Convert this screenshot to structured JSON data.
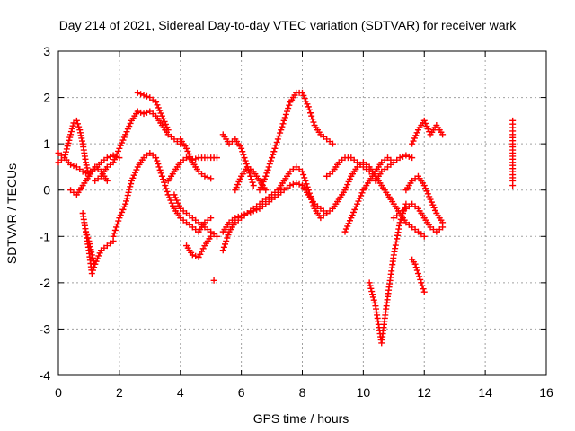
{
  "chart_data": {
    "type": "scatter",
    "title": "Day 214 of 2021, Sidereal Day-to-day VTEC variation (SDTVAR) for receiver wark",
    "xlabel": "GPS time / hours",
    "ylabel": "SDTVAR / TECUs",
    "xlim": [
      0,
      16
    ],
    "ylim": [
      -4,
      3
    ],
    "xticks": [
      0,
      2,
      4,
      6,
      8,
      10,
      12,
      14,
      16
    ],
    "yticks": [
      -4,
      -3,
      -2,
      -1,
      0,
      1,
      2,
      3
    ],
    "grid": true,
    "legend": "none",
    "marker": "+",
    "color": "#ff0000",
    "series": [
      {
        "x": [
          0,
          0.2,
          0.4,
          0.5,
          0.6,
          0.7,
          0.8,
          0.9,
          1.0,
          1.05
        ],
        "y": [
          0.6,
          0.7,
          1.2,
          1.45,
          1.5,
          1.3,
          1.0,
          0.6,
          0.3,
          0.4
        ]
      },
      {
        "x": [
          0,
          0.2,
          0.4,
          0.6,
          0.8,
          1.0,
          1.2,
          1.4,
          1.6,
          1.8,
          2.0
        ],
        "y": [
          0.8,
          0.7,
          0.55,
          0.5,
          0.4,
          0.35,
          0.45,
          0.6,
          0.7,
          0.75,
          0.7
        ]
      },
      {
        "x": [
          0.4,
          0.6,
          0.8,
          1.0,
          1.2,
          1.4,
          1.6
        ],
        "y": [
          0.0,
          -0.1,
          0.1,
          0.3,
          0.5,
          0.4,
          0.2
        ]
      },
      {
        "x": [
          0.8,
          0.9,
          1.0,
          1.1,
          1.2,
          1.4,
          1.6,
          1.8
        ],
        "y": [
          -0.5,
          -0.9,
          -1.3,
          -1.8,
          -1.6,
          -1.3,
          -1.2,
          -1.1
        ]
      },
      {
        "x": [
          0.9,
          1.0,
          1.1,
          1.2
        ],
        "y": [
          -0.9,
          -1.1,
          -1.4,
          -1.6
        ]
      },
      {
        "x": [
          1.2,
          1.4,
          1.6,
          1.8,
          2.0,
          2.2,
          2.4,
          2.6,
          2.8,
          3.0,
          3.2,
          3.4,
          3.6,
          3.8,
          4.0
        ],
        "y": [
          0.2,
          0.3,
          0.5,
          0.6,
          0.9,
          1.2,
          1.5,
          1.7,
          1.65,
          1.7,
          1.6,
          1.4,
          1.2,
          1.1,
          1.0
        ]
      },
      {
        "x": [
          2.6,
          2.8,
          3.0,
          3.2,
          3.4,
          3.6
        ],
        "y": [
          2.1,
          2.05,
          2.0,
          1.9,
          1.6,
          1.3
        ]
      },
      {
        "x": [
          1.8,
          2.0,
          2.2,
          2.4,
          2.6,
          2.8,
          3.0,
          3.2,
          3.4,
          3.6,
          3.8,
          4.0,
          4.2,
          4.4,
          4.6,
          4.8,
          5.0
        ],
        "y": [
          -1.0,
          -0.6,
          -0.3,
          0.2,
          0.5,
          0.7,
          0.8,
          0.7,
          0.3,
          -0.1,
          -0.4,
          -0.6,
          -0.7,
          -0.8,
          -0.9,
          -0.7,
          -0.6
        ]
      },
      {
        "x": [
          3.6,
          3.8,
          4.0,
          4.2,
          4.4,
          4.6,
          4.8,
          5.0,
          5.2
        ],
        "y": [
          0.2,
          0.4,
          0.6,
          0.7,
          0.65,
          0.7,
          0.7,
          0.7,
          0.7
        ]
      },
      {
        "x": [
          3.8,
          4.0,
          4.2,
          4.4,
          4.6,
          4.8,
          5.0,
          5.2
        ],
        "y": [
          -0.1,
          -0.4,
          -0.5,
          -0.6,
          -0.7,
          -0.8,
          -0.9,
          -1.0
        ]
      },
      {
        "x": [
          4.0,
          4.2,
          4.4,
          4.6,
          4.8,
          5.0
        ],
        "y": [
          1.1,
          0.9,
          0.6,
          0.4,
          0.3,
          0.25
        ]
      },
      {
        "x": [
          4.2,
          4.4,
          4.6,
          4.8,
          5.0
        ],
        "y": [
          -1.2,
          -1.4,
          -1.45,
          -1.2,
          -1.0
        ]
      },
      {
        "x": [
          5.1
        ],
        "y": [
          -1.95
        ]
      },
      {
        "x": [
          5.4,
          5.6,
          5.8,
          6.0,
          6.2,
          6.4
        ],
        "y": [
          1.2,
          1.0,
          1.1,
          0.9,
          0.5,
          0.1
        ]
      },
      {
        "x": [
          5.4,
          5.6,
          5.8,
          6.0,
          6.2,
          6.4,
          6.6,
          6.8,
          7.0,
          7.2,
          7.4,
          7.6,
          7.8,
          8.0,
          8.2,
          8.4,
          8.6,
          8.8
        ],
        "y": [
          -0.9,
          -0.7,
          -0.6,
          -0.55,
          -0.5,
          -0.4,
          -0.3,
          -0.2,
          -0.1,
          0.0,
          0.2,
          0.4,
          0.5,
          0.4,
          0.0,
          -0.4,
          -0.6,
          -0.5
        ]
      },
      {
        "x": [
          5.4,
          5.6,
          5.8,
          6.0,
          6.2,
          6.4,
          6.6,
          6.8,
          7.0,
          7.2,
          7.4,
          7.6,
          7.8,
          8.0,
          8.2,
          8.4
        ],
        "y": [
          -1.3,
          -0.9,
          -0.7,
          -0.6,
          -0.5,
          -0.45,
          -0.4,
          -0.3,
          -0.2,
          -0.1,
          0.0,
          0.1,
          0.15,
          0.1,
          -0.1,
          -0.3
        ]
      },
      {
        "x": [
          5.8,
          6.0,
          6.2,
          6.4,
          6.6,
          6.8
        ],
        "y": [
          0.0,
          0.3,
          0.5,
          0.4,
          0.2,
          0.0
        ]
      },
      {
        "x": [
          6.6,
          6.8,
          7.0,
          7.2,
          7.4,
          7.6,
          7.8,
          8.0,
          8.2,
          8.4,
          8.6,
          8.8,
          9.0
        ],
        "y": [
          0.0,
          0.3,
          0.7,
          1.1,
          1.5,
          1.9,
          2.1,
          2.1,
          1.8,
          1.4,
          1.2,
          1.1,
          1.0
        ]
      },
      {
        "x": [
          8.4,
          8.6,
          8.8,
          9.0,
          9.2,
          9.4,
          9.6,
          9.8,
          10.0,
          10.2,
          10.4,
          10.6,
          10.8,
          11.0,
          11.2,
          11.4,
          11.6,
          11.8,
          12.0
        ],
        "y": [
          -0.3,
          -0.4,
          -0.5,
          -0.4,
          -0.2,
          0.0,
          0.3,
          0.5,
          0.6,
          0.5,
          0.3,
          0.1,
          -0.1,
          -0.3,
          -0.5,
          -0.7,
          -0.8,
          -0.9,
          -1.0
        ]
      },
      {
        "x": [
          8.8,
          9.0,
          9.2,
          9.4,
          9.6,
          9.8,
          10.0,
          10.2,
          10.4
        ],
        "y": [
          0.3,
          0.4,
          0.6,
          0.7,
          0.7,
          0.6,
          0.5,
          0.4,
          0.3
        ]
      },
      {
        "x": [
          9.4,
          9.6,
          9.8,
          10.0,
          10.2,
          10.4,
          10.6,
          10.8,
          11.0
        ],
        "y": [
          -0.9,
          -0.6,
          -0.3,
          0.0,
          0.2,
          0.4,
          0.6,
          0.7,
          0.6
        ]
      },
      {
        "x": [
          10.2,
          10.4,
          10.6,
          10.8,
          11.0,
          11.2,
          11.4
        ],
        "y": [
          -2.0,
          -2.5,
          -3.3,
          -2.3,
          -1.4,
          -0.7,
          -0.3
        ]
      },
      {
        "x": [
          10.4,
          10.6,
          10.8,
          11.0,
          11.2,
          11.4,
          11.6
        ],
        "y": [
          0.2,
          0.4,
          0.5,
          0.6,
          0.7,
          0.75,
          0.7
        ]
      },
      {
        "x": [
          11.0,
          11.2,
          11.4,
          11.6,
          11.8,
          12.0,
          12.2,
          12.4,
          12.6
        ],
        "y": [
          -0.6,
          -0.5,
          -0.4,
          -0.3,
          -0.4,
          -0.6,
          -0.8,
          -0.9,
          -0.8
        ]
      },
      {
        "x": [
          11.4,
          11.6,
          11.8,
          12.0,
          12.2,
          12.4,
          12.6
        ],
        "y": [
          0.0,
          0.2,
          0.3,
          0.1,
          -0.2,
          -0.5,
          -0.7
        ]
      },
      {
        "x": [
          11.6,
          11.7,
          11.8,
          11.9,
          12.0
        ],
        "y": [
          -1.5,
          -1.6,
          -1.8,
          -2.0,
          -2.2
        ]
      },
      {
        "x": [
          11.6,
          11.8,
          12.0,
          12.2,
          12.4,
          12.6
        ],
        "y": [
          1.0,
          1.3,
          1.5,
          1.2,
          1.4,
          1.2
        ]
      },
      {
        "x": [
          14.9,
          14.9,
          14.9,
          14.9,
          14.9,
          14.9,
          14.9,
          14.9
        ],
        "y": [
          1.5,
          1.2,
          1.0,
          0.8,
          0.6,
          0.4,
          0.2,
          0.1
        ]
      }
    ]
  }
}
